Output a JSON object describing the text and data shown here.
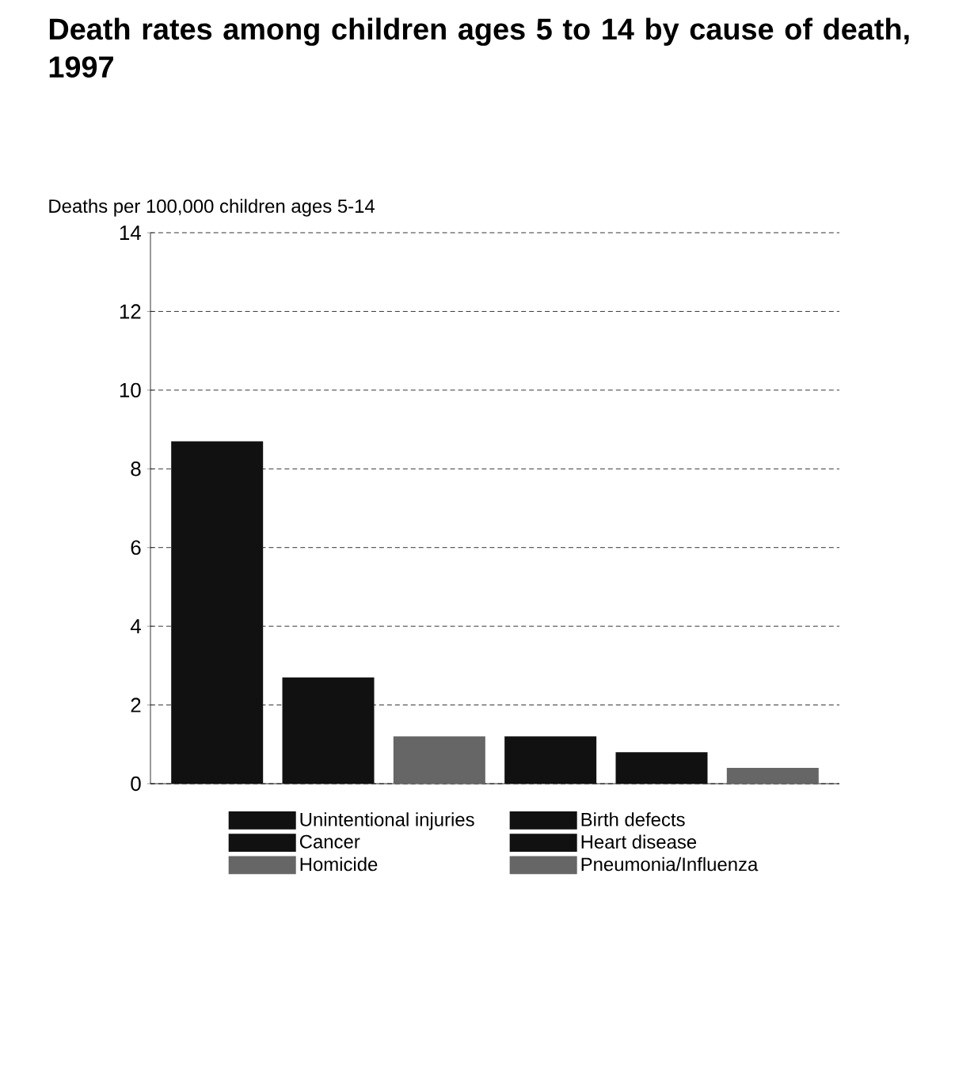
{
  "chart_data": {
    "type": "bar",
    "title": "Death rates among children ages 5 to 14 by cause of death, 1997",
    "ylabel": "Deaths per 100,000 children ages 5-14",
    "categories": [
      null,
      null,
      null,
      null,
      null,
      null
    ],
    "series": [
      {
        "name": "Unintentional injuries",
        "color": "#111111",
        "values": [
          8.7,
          null,
          null,
          null,
          null,
          null
        ]
      },
      {
        "name": "Cancer",
        "color": "#111111",
        "values": [
          null,
          2.7,
          null,
          null,
          null,
          null
        ]
      },
      {
        "name": "Homicide",
        "color": "#666666",
        "values": [
          null,
          null,
          1.2,
          null,
          null,
          null
        ]
      },
      {
        "name": "Birth defects",
        "color": "#111111",
        "values": [
          null,
          null,
          null,
          1.2,
          null,
          null
        ]
      },
      {
        "name": "Heart disease",
        "color": "#111111",
        "values": [
          null,
          null,
          null,
          null,
          0.8,
          null
        ]
      },
      {
        "name": "Pneumonia/Influenza",
        "color": "#666666",
        "values": [
          null,
          null,
          null,
          null,
          null,
          0.4
        ]
      }
    ],
    "ylim": [
      0,
      14
    ],
    "yticks": [
      0,
      2,
      4,
      6,
      8,
      10,
      12,
      14
    ],
    "grid": "y",
    "legend": "bottom",
    "tick_labels": "y"
  }
}
